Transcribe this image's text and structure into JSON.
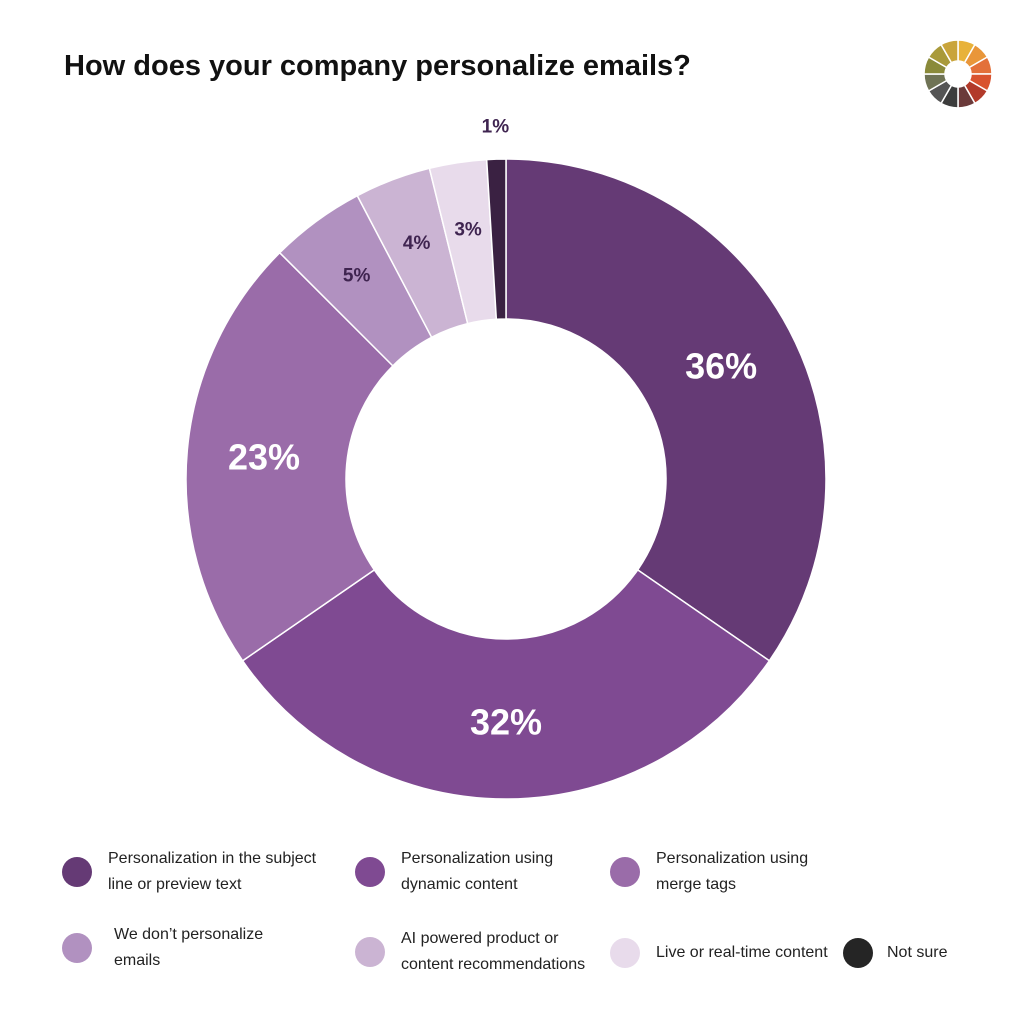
{
  "title": "How does your company personalize emails?",
  "logo": {
    "icon": "color-wheel-logo-icon",
    "colors": [
      "#e8b23a",
      "#e9963a",
      "#e3703a",
      "#d9532f",
      "#b23a2a",
      "#6b3a3a",
      "#3c3c3c",
      "#555555",
      "#6f7355",
      "#8a8a3a",
      "#a99a3a",
      "#c9a43a"
    ]
  },
  "chart_data": {
    "type": "pie",
    "title": "How does your company personalize emails?",
    "donut": true,
    "unit": "%",
    "slices": [
      {
        "name": "Personalization in the subject line or preview text",
        "value": 36,
        "label": "36%",
        "color": "#653a75"
      },
      {
        "name": "Personalization using dynamic content",
        "value": 32,
        "label": "32%",
        "color": "#7f4a92"
      },
      {
        "name": "Personalization using merge tags",
        "value": 23,
        "label": "23%",
        "color": "#9a6ca9"
      },
      {
        "name": "We don’t personalize emails",
        "value": 5,
        "label": "5%",
        "color": "#b191c0"
      },
      {
        "name": "AI powered product or content recommendations",
        "value": 4,
        "label": "4%",
        "color": "#cbb4d3"
      },
      {
        "name": "Live or real-time content",
        "value": 3,
        "label": "3%",
        "color": "#e8dbeb"
      },
      {
        "name": "Not sure",
        "value": 1,
        "label": "1%",
        "color": "#3a2142"
      }
    ],
    "legend": {
      "position": "bottom"
    }
  },
  "legend_swatch_colors": [
    "#653a75",
    "#7f4a92",
    "#9a6ca9",
    "#b191c0",
    "#cbb4d3",
    "#e8dbeb",
    "#252525"
  ]
}
